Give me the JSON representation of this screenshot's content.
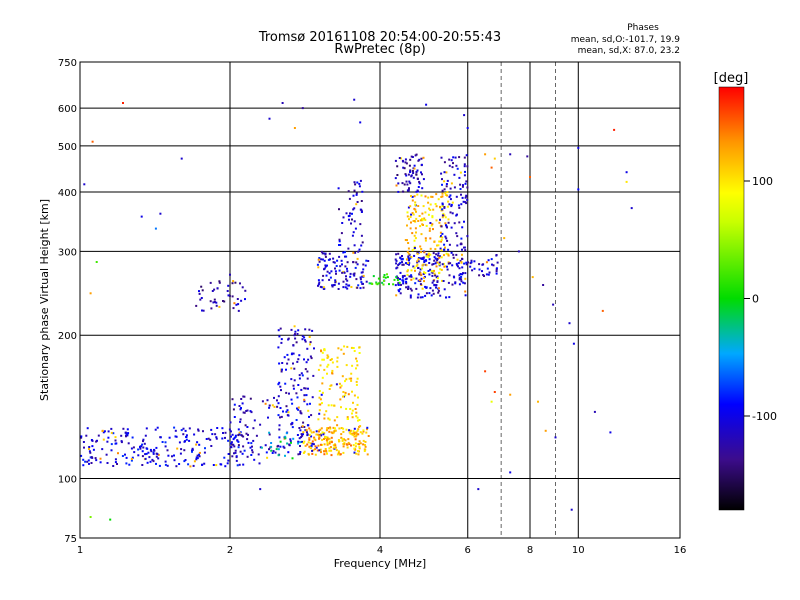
{
  "chart_data": {
    "type": "scatter",
    "title": "Tromsø 20161108 20:54:00-20:55:43",
    "subtitle": "RwPretec (8p)",
    "xlabel": "Frequency [MHz]",
    "ylabel": "Stationary phase Virtual Height [km]",
    "x_scale": "log",
    "y_scale": "log",
    "xlim": [
      1,
      16
    ],
    "ylim": [
      75,
      750
    ],
    "x_ticks": [
      1,
      2,
      4,
      6,
      8,
      10,
      16
    ],
    "x_ticks_minor": [
      7,
      9
    ],
    "y_ticks": [
      75,
      100,
      200,
      300,
      400,
      500,
      600,
      750
    ],
    "grid": true,
    "legend": {
      "title": "Phases",
      "lines": [
        "mean, sd,O:-101.7, 19.9",
        "mean, sd,X:  87.0, 23.2"
      ]
    },
    "colorbar": {
      "label": "[deg]",
      "range": [
        -180,
        180
      ],
      "ticks": [
        100,
        0,
        -100
      ]
    },
    "clusters": [
      {
        "fmin": 1.0,
        "fmax": 2.3,
        "hmin": 106,
        "hmax": 128,
        "phase": -105,
        "count": 260
      },
      {
        "fmin": 2.0,
        "fmax": 2.55,
        "hmin": 110,
        "hmax": 150,
        "phase": -115,
        "count": 70
      },
      {
        "fmin": 2.5,
        "fmax": 2.95,
        "hmin": 112,
        "hmax": 210,
        "phase": -110,
        "count": 160
      },
      {
        "fmin": 2.8,
        "fmax": 3.8,
        "hmin": 112,
        "hmax": 128,
        "phase": 120,
        "count": 180
      },
      {
        "fmin": 3.0,
        "fmax": 3.65,
        "hmin": 120,
        "hmax": 190,
        "phase": 110,
        "count": 140
      },
      {
        "fmin": 2.3,
        "fmax": 2.8,
        "hmin": 110,
        "hmax": 125,
        "phase": -30,
        "count": 20
      },
      {
        "fmin": 1.7,
        "fmax": 2.15,
        "hmin": 225,
        "hmax": 260,
        "phase": -120,
        "count": 45
      },
      {
        "fmin": 3.0,
        "fmax": 3.8,
        "hmin": 250,
        "hmax": 300,
        "phase": -110,
        "count": 120
      },
      {
        "fmin": 3.3,
        "fmax": 3.7,
        "hmin": 300,
        "hmax": 430,
        "phase": -115,
        "count": 50
      },
      {
        "fmin": 4.3,
        "fmax": 5.3,
        "hmin": 240,
        "hmax": 300,
        "phase": -110,
        "count": 160
      },
      {
        "fmin": 4.3,
        "fmax": 4.9,
        "hmin": 400,
        "hmax": 480,
        "phase": -120,
        "count": 70
      },
      {
        "fmin": 4.5,
        "fmax": 5.5,
        "hmin": 260,
        "hmax": 400,
        "phase": 110,
        "count": 190
      },
      {
        "fmin": 5.3,
        "fmax": 6.0,
        "hmin": 240,
        "hmax": 480,
        "phase": -110,
        "count": 150
      },
      {
        "fmin": 5.7,
        "fmax": 6.9,
        "hmin": 265,
        "hmax": 295,
        "phase": -110,
        "count": 40
      },
      {
        "fmin": 3.8,
        "fmax": 4.4,
        "hmin": 255,
        "hmax": 270,
        "phase": 10,
        "count": 25
      }
    ],
    "scattered_points": [
      [
        1.02,
        415,
        -110
      ],
      [
        1.06,
        510,
        150
      ],
      [
        1.05,
        245,
        130
      ],
      [
        1.08,
        285,
        20
      ],
      [
        1.22,
        615,
        170
      ],
      [
        1.33,
        355,
        -100
      ],
      [
        1.45,
        360,
        -110
      ],
      [
        1.42,
        335,
        -60
      ],
      [
        1.05,
        83,
        40
      ],
      [
        1.15,
        82,
        0
      ],
      [
        2.4,
        570,
        -110
      ],
      [
        2.55,
        615,
        -120
      ],
      [
        2.8,
        600,
        -130
      ],
      [
        2.7,
        545,
        130
      ],
      [
        3.55,
        625,
        -110
      ],
      [
        3.65,
        560,
        -100
      ],
      [
        4.95,
        610,
        -100
      ],
      [
        5.9,
        580,
        -110
      ],
      [
        6.0,
        545,
        -100
      ],
      [
        5.6,
        380,
        100
      ],
      [
        6.5,
        480,
        130
      ],
      [
        6.8,
        470,
        110
      ],
      [
        7.3,
        480,
        -120
      ],
      [
        7.9,
        475,
        -130
      ],
      [
        8.0,
        430,
        150
      ],
      [
        7.1,
        320,
        120
      ],
      [
        7.6,
        300,
        -120
      ],
      [
        8.1,
        265,
        120
      ],
      [
        8.5,
        255,
        -130
      ],
      [
        8.9,
        232,
        -120
      ],
      [
        9.6,
        212,
        -110
      ],
      [
        9.8,
        192,
        -100
      ],
      [
        6.8,
        152,
        160
      ],
      [
        7.3,
        150,
        130
      ],
      [
        8.3,
        145,
        120
      ],
      [
        8.6,
        126,
        130
      ],
      [
        9.0,
        122,
        -110
      ],
      [
        6.5,
        168,
        160
      ],
      [
        6.7,
        145,
        80
      ],
      [
        10.8,
        138,
        -120
      ],
      [
        11.6,
        125,
        -100
      ],
      [
        11.8,
        540,
        170
      ],
      [
        12.5,
        440,
        -100
      ],
      [
        12.5,
        420,
        100
      ],
      [
        12.8,
        370,
        -110
      ],
      [
        11.2,
        225,
        150
      ],
      [
        10.0,
        405,
        -90
      ],
      [
        10.0,
        495,
        -100
      ],
      [
        9.7,
        86,
        -110
      ],
      [
        6.3,
        95,
        -110
      ],
      [
        7.3,
        103,
        -100
      ],
      [
        2.3,
        95,
        -110
      ],
      [
        4.7,
        305,
        -110
      ],
      [
        6.7,
        450,
        150
      ],
      [
        1.6,
        470,
        -110
      ],
      [
        2.0,
        268,
        -120
      ]
    ]
  }
}
